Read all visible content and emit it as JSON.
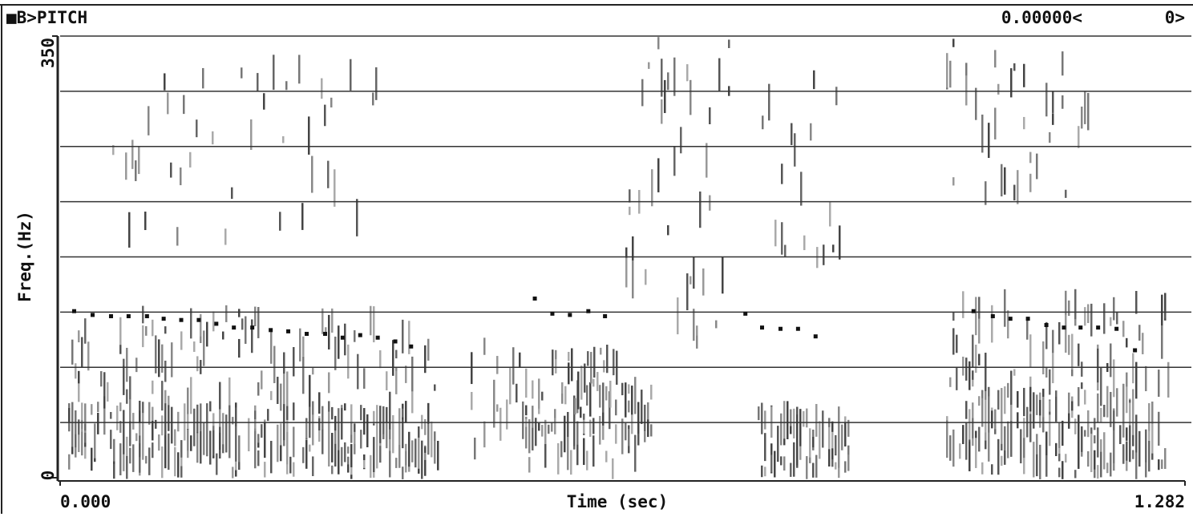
{
  "chart_data": {
    "type": "scatter",
    "title": "■B>PITCH",
    "status": [
      "0.00000<",
      "0>"
    ],
    "xlabel": "Time (sec)",
    "ylabel": "Freq.(Hz)",
    "xlim": [
      0,
      1.282
    ],
    "ylim": [
      0,
      350
    ],
    "xticks": [
      {
        "value": 0,
        "label": "0.000"
      },
      {
        "value": 1.282,
        "label": "1.282"
      }
    ],
    "yticks": [
      0,
      350
    ],
    "ygrid": [
      43.75,
      87.5,
      131.25,
      175,
      218.75,
      262.5,
      306.25,
      350
    ],
    "grid": true,
    "color": "#111111",
    "x": [
      0.016,
      0.037,
      0.058,
      0.078,
      0.099,
      0.118,
      0.138,
      0.158,
      0.178,
      0.198,
      0.219,
      0.24,
      0.26,
      0.281,
      0.302,
      0.322,
      0.342,
      0.362,
      0.382,
      0.4,
      0.541,
      0.561,
      0.581,
      0.602,
      0.621,
      0.781,
      0.8,
      0.821,
      0.841,
      0.861,
      1.041,
      1.063,
      1.083,
      1.103,
      1.124,
      1.144,
      1.163,
      1.183,
      1.204,
      1.225
    ],
    "values": [
      132,
      129,
      128,
      128,
      128,
      126,
      125,
      125,
      122,
      119,
      119,
      117,
      116,
      114,
      114,
      111,
      113,
      111,
      108,
      104,
      142,
      130,
      129,
      132,
      128,
      130,
      119,
      118,
      118,
      112,
      132,
      128,
      126,
      126,
      121,
      119,
      119,
      119,
      118,
      101
    ]
  }
}
